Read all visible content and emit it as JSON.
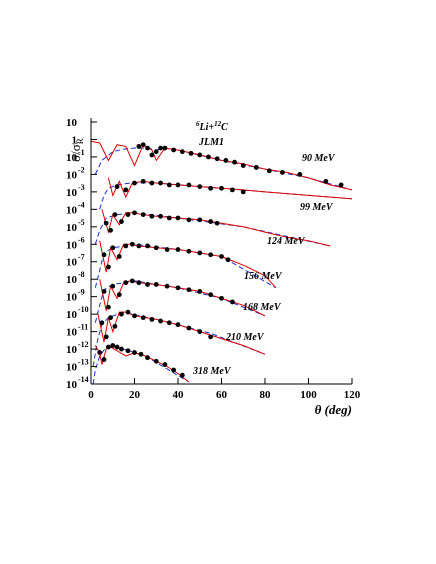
{
  "chart_data": {
    "type": "scatter",
    "ylabel": {
      "main": "σ/σ",
      "sub": "R"
    },
    "xlabel": "θ (deg)",
    "reaction": {
      "a_mass": "6",
      "a": "Li+",
      "b_mass": "12",
      "b": "C"
    },
    "model": "JLM1",
    "ylog": true,
    "xlim": [
      0,
      120
    ],
    "xticks": [
      0,
      20,
      40,
      60,
      80,
      100,
      120
    ],
    "ylim": [
      1e-14,
      10
    ],
    "yticks": [
      10,
      1,
      {
        "value": 0.1,
        "label": "10",
        "exponent": "-1"
      },
      {
        "value": 0.01,
        "label": "10",
        "exponent": "-2"
      },
      {
        "value": 0.001,
        "label": "10",
        "exponent": "-3"
      },
      {
        "value": 0.0001,
        "label": "10",
        "exponent": "-4"
      },
      {
        "value": 1e-05,
        "label": "10",
        "exponent": "-5"
      },
      {
        "value": 1e-06,
        "label": "10",
        "exponent": "-6"
      },
      {
        "value": 1e-07,
        "label": "10",
        "exponent": "-7"
      },
      {
        "value": 1e-08,
        "label": "10",
        "exponent": "-8"
      },
      {
        "value": 1e-09,
        "label": "10",
        "exponent": "-9"
      },
      {
        "value": 1e-10,
        "label": "10",
        "exponent": "-10"
      },
      {
        "value": 1e-11,
        "label": "10",
        "exponent": "-11"
      },
      {
        "value": 1e-12,
        "label": "10",
        "exponent": "-12"
      },
      {
        "value": 1e-13,
        "label": "10",
        "exponent": "-13"
      },
      {
        "value": 1e-14,
        "label": "10",
        "exponent": "-14"
      }
    ],
    "marker_color": "#000000",
    "fit_color": "#e00000",
    "alt_color": "#1c2fd0",
    "series": [
      {
        "name": "90 MeV",
        "x": [
          22,
          24,
          26,
          28,
          30,
          32,
          34,
          38,
          42,
          46,
          50,
          54,
          58,
          62,
          66,
          70,
          76,
          82,
          88,
          96,
          108,
          115
        ],
        "values": [
          0.4,
          0.5,
          0.32,
          0.13,
          0.2,
          0.32,
          0.32,
          0.25,
          0.2,
          0.16,
          0.13,
          0.1,
          0.079,
          0.063,
          0.05,
          0.032,
          0.025,
          0.016,
          0.013,
          0.01,
          0.004,
          0.0025
        ],
        "fit_x": [
          0,
          4,
          8,
          12,
          16,
          20,
          24,
          28,
          30,
          34,
          40,
          50,
          60,
          70,
          80,
          90,
          100,
          110,
          120
        ],
        "fit": [
          0.79,
          0.63,
          0.063,
          0.5,
          0.4,
          0.032,
          0.5,
          0.25,
          0.063,
          0.32,
          0.25,
          0.13,
          0.063,
          0.04,
          0.02,
          0.013,
          0.0063,
          0.0025,
          0.0013
        ],
        "alt_x": [
          2,
          5,
          10,
          15,
          20,
          26,
          30,
          34,
          40,
          60,
          80,
          100,
          120
        ],
        "alt": [
          0.01,
          0.063,
          0.2,
          0.28,
          0.32,
          0.32,
          0.25,
          0.32,
          0.25,
          0.063,
          0.02,
          0.0063,
          0.0013
        ]
      },
      {
        "name": "99 MeV",
        "x": [
          12,
          16,
          20,
          24,
          28,
          32,
          36,
          40,
          45,
          50,
          55,
          60,
          65,
          70
        ],
        "values": [
          0.002,
          0.0013,
          0.0032,
          0.004,
          0.0032,
          0.0032,
          0.0025,
          0.0025,
          0.0025,
          0.002,
          0.0016,
          0.0016,
          0.0013,
          0.001
        ],
        "fit_x": [
          8,
          10,
          13,
          16,
          19,
          24,
          30,
          40,
          50,
          60,
          70,
          80,
          90,
          100,
          110,
          120
        ],
        "fit": [
          0.0063,
          0.00063,
          0.004,
          0.0005,
          0.0032,
          0.004,
          0.0032,
          0.0025,
          0.002,
          0.0016,
          0.0013,
          0.001,
          0.0008,
          0.00063,
          0.0005,
          0.0004
        ],
        "alt_x": [
          4,
          6,
          8,
          12,
          18,
          30,
          60,
          90,
          120
        ],
        "alt": [
          0.0001,
          0.00063,
          0.0016,
          0.0025,
          0.0032,
          0.0032,
          0.0016,
          0.0008,
          0.0004
        ]
      },
      {
        "name": "124 MeV",
        "x": [
          7,
          9,
          11,
          14,
          17,
          20,
          24,
          28,
          32,
          36,
          40,
          45,
          50,
          55,
          58
        ],
        "values": [
          1.6e-05,
          6.3e-06,
          5e-05,
          2e-05,
          5e-05,
          6.3e-05,
          5e-05,
          4e-05,
          4e-05,
          3.2e-05,
          3.2e-05,
          2.5e-05,
          2.5e-05,
          2e-05,
          1.6e-05
        ],
        "fit_x": [
          5,
          8,
          10,
          13,
          16,
          19,
          24,
          30,
          40,
          50,
          60,
          70,
          80,
          90,
          100,
          110
        ],
        "fit": [
          0.0001,
          5e-06,
          5e-05,
          1.3e-05,
          6.3e-05,
          6.3e-05,
          5e-05,
          4e-05,
          3.2e-05,
          2.5e-05,
          1.6e-05,
          1e-05,
          5e-06,
          2.5e-06,
          1.6e-06,
          8e-07
        ],
        "alt_x": [
          2,
          4,
          7,
          12,
          20,
          40,
          70,
          110
        ],
        "alt": [
          1e-06,
          6.3e-06,
          3.2e-05,
          5e-05,
          6.3e-05,
          3.2e-05,
          1e-05,
          8e-07
        ]
      },
      {
        "name": "156 MeV",
        "x": [
          6,
          8,
          10,
          13,
          16,
          19,
          22,
          26,
          30,
          35,
          40,
          45,
          50,
          55,
          60,
          63
        ],
        "values": [
          2.5e-07,
          5e-08,
          6.3e-07,
          2e-07,
          8e-07,
          1e-06,
          8e-07,
          8e-07,
          6.3e-07,
          5e-07,
          5e-07,
          4e-07,
          3.2e-07,
          2.5e-07,
          2e-07,
          1.3e-07
        ],
        "fit_x": [
          4,
          7,
          9,
          12,
          15,
          18,
          22,
          30,
          40,
          50,
          60,
          70,
          80,
          85
        ],
        "fit": [
          1.6e-06,
          2.5e-08,
          6.3e-07,
          1.3e-07,
          1e-06,
          1e-06,
          8e-07,
          6.3e-07,
          5e-07,
          3.2e-07,
          2e-07,
          6.3e-08,
          1.6e-08,
          3.2e-09
        ],
        "alt_x": [
          2,
          4,
          6,
          10,
          20,
          40,
          60,
          85
        ],
        "alt": [
          3.2e-09,
          3.2e-08,
          3.2e-07,
          6.3e-07,
          1e-06,
          5e-07,
          2e-07,
          3.2e-09
        ]
      },
      {
        "name": "168 MeV",
        "x": [
          6,
          8,
          10,
          13,
          16,
          19,
          22,
          26,
          30,
          35,
          40,
          45,
          50,
          55,
          60,
          65
        ],
        "values": [
          2e-09,
          2.5e-10,
          4e-09,
          1.3e-09,
          6.3e-09,
          8e-09,
          6.3e-09,
          5e-09,
          5e-09,
          4e-09,
          3.2e-09,
          2.5e-09,
          2e-09,
          1.3e-09,
          8e-10,
          5e-10
        ],
        "fit_x": [
          4,
          7,
          9,
          12,
          15,
          18,
          22,
          30,
          40,
          50,
          60,
          70,
          80
        ],
        "fit": [
          1e-08,
          1.6e-10,
          4e-09,
          8e-10,
          6.3e-09,
          8e-09,
          6.3e-09,
          5e-09,
          3.2e-09,
          2e-09,
          8e-10,
          3.2e-10,
          8e-11
        ],
        "alt_x": [
          2,
          4,
          6,
          10,
          20,
          40,
          60,
          80
        ],
        "alt": [
          3.2e-11,
          3.2e-10,
          2.5e-09,
          5e-09,
          8e-09,
          3.2e-09,
          8e-10,
          8e-11
        ]
      },
      {
        "name": "210 MeV",
        "x": [
          5,
          7,
          9,
          11,
          14,
          17,
          20,
          24,
          28,
          32,
          36,
          40,
          45,
          50,
          55
        ],
        "values": [
          3.2e-11,
          5e-12,
          6.3e-11,
          2e-11,
          1e-10,
          1.3e-10,
          8e-11,
          6.3e-11,
          5e-11,
          4e-11,
          3.2e-11,
          2.5e-11,
          1.6e-11,
          1e-11,
          5e-12
        ],
        "fit_x": [
          3,
          6,
          8,
          10,
          13,
          16,
          20,
          30,
          40,
          50,
          60,
          70,
          80
        ],
        "fit": [
          1.3e-10,
          2.5e-12,
          6.3e-11,
          1e-11,
          1.3e-10,
          1.3e-10,
          8e-11,
          5e-11,
          2.5e-11,
          1e-11,
          4e-12,
          1.6e-12,
          5e-13
        ],
        "alt_x": [
          1,
          3,
          5,
          8,
          15,
          30,
          55,
          80
        ],
        "alt": [
          1e-13,
          3.2e-12,
          2.5e-11,
          6.3e-11,
          1.3e-10,
          5e-11,
          8e-12,
          5e-13
        ]
      },
      {
        "name": "318 MeV",
        "x": [
          4,
          6,
          8,
          10,
          12,
          14,
          17,
          20,
          23,
          26,
          30,
          34,
          38,
          42
        ],
        "values": [
          6.3e-13,
          2.5e-13,
          1.3e-12,
          1.6e-12,
          1.3e-12,
          1e-12,
          8e-13,
          6.3e-13,
          5e-13,
          3.2e-13,
          2e-13,
          1.3e-13,
          6.3e-14,
          3.2e-14
        ],
        "fit_x": [
          2,
          4,
          5,
          7,
          9,
          12,
          16,
          20,
          25,
          30,
          35,
          40,
          45
        ],
        "fit": [
          1.6e-12,
          6.3e-13,
          1.3e-13,
          1e-12,
          1.3e-12,
          8e-13,
          4e-13,
          6.3e-13,
          4e-13,
          2e-13,
          1e-13,
          4e-14,
          1.3e-14
        ],
        "alt_x": [
          1,
          2,
          4,
          7,
          12,
          25,
          45
        ],
        "alt": [
          1e-14,
          6.3e-14,
          4e-13,
          1.3e-12,
          1.3e-12,
          4e-13,
          1.3e-14
        ]
      }
    ]
  }
}
